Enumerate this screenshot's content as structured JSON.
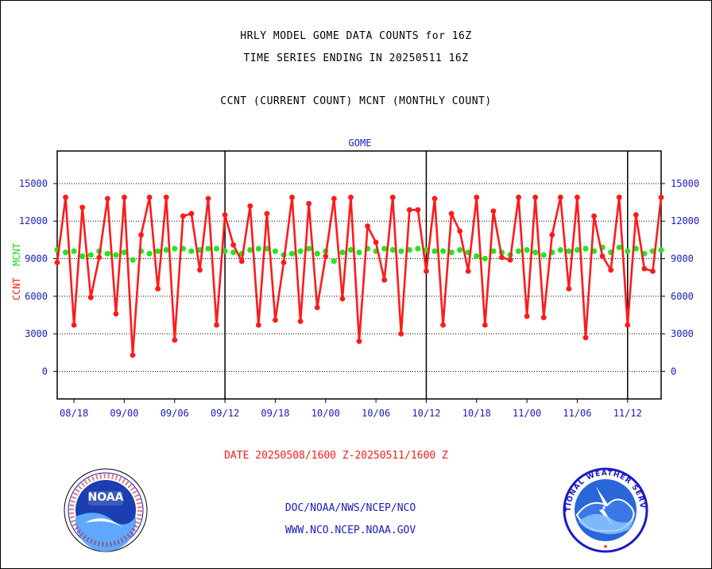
{
  "header": {
    "title1": "HRLY MODEL GOME DATA COUNTS for 16Z",
    "title2": "TIME SERIES ENDING IN 20250511 16Z",
    "title3": "CCNT (CURRENT COUNT) MCNT (MONTHLY COUNT)"
  },
  "plot_label": "GOME",
  "ytitle": {
    "ccnt": "CCNT",
    "mcnt": "MCNT"
  },
  "footer": {
    "date_range": "DATE 20250508/1600 Z-20250511/1600 Z",
    "org_line": "DOC/NOAA/NWS/NCEP/NCO",
    "website": "WWW.NCO.NCEP.NOAA.GOV"
  },
  "logos": {
    "noaa_text": "NOAA",
    "nws_text": "NATIONAL WEATHER SERVICE"
  },
  "colors": {
    "ccnt": "#ff1a1a",
    "mcnt": "#22e622",
    "axis_text": "#1a1ac8",
    "grid": "#000000"
  },
  "chart_data": {
    "type": "line",
    "x_tick_labels": [
      "08/18",
      "09/00",
      "09/06",
      "09/12",
      "09/18",
      "10/00",
      "10/06",
      "10/12",
      "10/18",
      "11/00",
      "11/06",
      "11/12"
    ],
    "x_tick_hours": [
      2,
      8,
      14,
      20,
      26,
      32,
      38,
      44,
      50,
      56,
      62,
      68
    ],
    "day_separator_hours": [
      20,
      44,
      68
    ],
    "x_range_hours": [
      0,
      72
    ],
    "y_ticks": [
      0,
      3000,
      6000,
      9000,
      12000,
      15000
    ],
    "ylim": [
      -2200,
      17600
    ],
    "series": [
      {
        "name": "CCNT",
        "values": [
          8700,
          13900,
          3700,
          13100,
          5900,
          9100,
          13800,
          4600,
          13900,
          1300,
          10900,
          13900,
          6600,
          13900,
          2500,
          12400,
          12600,
          8100,
          13800,
          3700,
          12500,
          10100,
          8800,
          13200,
          3700,
          12600,
          4100,
          8700,
          13900,
          4000,
          13400,
          5100,
          9200,
          13800,
          5800,
          13900,
          2400,
          11600,
          10300,
          7300,
          13900,
          3000,
          12900,
          12900,
          8000,
          13800,
          3700,
          12600,
          11200,
          8000,
          13900,
          3700,
          12800,
          9100,
          8900,
          13900,
          4400,
          13900,
          4300,
          10900,
          13900,
          6600,
          13900,
          2700,
          12400,
          9200,
          8100,
          13900,
          3700,
          12500,
          8200,
          8000,
          13900
        ]
      },
      {
        "name": "MCNT",
        "values": [
          9700,
          9500,
          9600,
          9200,
          9300,
          9600,
          9400,
          9300,
          9500,
          8900,
          9600,
          9400,
          9600,
          9700,
          9800,
          9800,
          9600,
          9700,
          9800,
          9800,
          9600,
          9500,
          9400,
          9700,
          9800,
          9800,
          9600,
          9300,
          9400,
          9600,
          9800,
          9400,
          9600,
          8800,
          9500,
          9700,
          9500,
          9800,
          9600,
          9800,
          9700,
          9600,
          9700,
          9800,
          9700,
          9600,
          9600,
          9500,
          9700,
          9500,
          9200,
          9000,
          9600,
          9500,
          9300,
          9600,
          9700,
          9500,
          9300,
          9500,
          9700,
          9600,
          9700,
          9800,
          9600,
          9900,
          9500,
          9900,
          9600,
          9800,
          9400,
          9600,
          9700
        ]
      }
    ]
  }
}
